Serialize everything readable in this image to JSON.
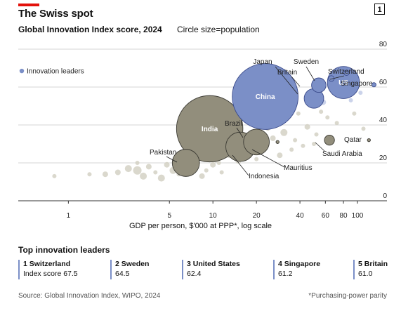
{
  "header": {
    "title": "The Swiss spot",
    "badge": "1",
    "subtitle": "Global Innovation Index score, 2024",
    "size_note": "Circle size=population"
  },
  "legend": {
    "label": "Innovation leaders"
  },
  "colors": {
    "leaders": "#7b8fc7",
    "highlighted": "#928e7c",
    "background_bubbles": "#d4d1c4",
    "background_leaders": "#c2cbe6",
    "grid": "#c8c8c8",
    "accent_red": "#e3120b"
  },
  "chart_data": {
    "type": "scatter",
    "xlabel": "GDP per person, $'000 at PPP*, log scale",
    "x_scale": "log",
    "xlim": [
      0.45,
      160
    ],
    "ylim": [
      0,
      80
    ],
    "x_ticks": [
      1,
      5,
      10,
      20,
      40,
      60,
      80,
      100
    ],
    "y_ticks": [
      0,
      20,
      40,
      60,
      80
    ],
    "y_axis_position": "right",
    "grid": "horizontal",
    "series": [
      {
        "name": "Innovation leaders",
        "points": [
          {
            "label": "China",
            "x": 23,
            "y": 55,
            "size": 1410
          },
          {
            "label": "US",
            "x": 80,
            "y": 62.4,
            "size": 335
          },
          {
            "label": "Britain",
            "x": 54,
            "y": 61,
            "size": 68
          },
          {
            "label": "Japan",
            "x": 50,
            "y": 54,
            "size": 124
          },
          {
            "label": "Sweden",
            "x": 66,
            "y": 64.5,
            "size": 10.5
          },
          {
            "label": "Switzerland",
            "x": 84,
            "y": 67.5,
            "size": 8.9
          },
          {
            "label": "Singapore",
            "x": 130,
            "y": 61.2,
            "size": 5.9
          }
        ]
      },
      {
        "name": "Other countries",
        "points": [
          {
            "label": "India",
            "x": 9.5,
            "y": 38,
            "size": 1430
          },
          {
            "label": "Brazil",
            "x": 20,
            "y": 31,
            "size": 216
          },
          {
            "label": "Indonesia",
            "x": 15.5,
            "y": 28.5,
            "size": 278
          },
          {
            "label": "Pakistan",
            "x": 6.5,
            "y": 20,
            "size": 240
          },
          {
            "label": "Mauritius",
            "x": 28,
            "y": 31,
            "size": 1.3
          },
          {
            "label": "Saudi Arabia",
            "x": 64,
            "y": 32,
            "size": 33
          },
          {
            "label": "Qatar",
            "x": 120,
            "y": 32,
            "size": 2.7
          }
        ]
      }
    ],
    "labels": [
      "Japan",
      "Sweden",
      "Britain",
      "Switzerland",
      "US",
      "Singapore",
      "China",
      "India",
      "Brazil",
      "Pakistan",
      "Indonesia",
      "Mauritius",
      "Qatar",
      "Saudi Arabia"
    ]
  },
  "top_leaders": {
    "title": "Top innovation leaders",
    "items": [
      {
        "rank_name": "1 Switzerland",
        "score": "Index score 67.5"
      },
      {
        "rank_name": "2 Sweden",
        "score": "64.5"
      },
      {
        "rank_name": "3 United States",
        "score": "62.4"
      },
      {
        "rank_name": "4 Singapore",
        "score": "61.2"
      },
      {
        "rank_name": "5 Britain",
        "score": "61.0"
      }
    ]
  },
  "footer": {
    "source": "Source: Global Innovation Index, WIPO, 2024",
    "note": "*Purchasing-power parity"
  }
}
